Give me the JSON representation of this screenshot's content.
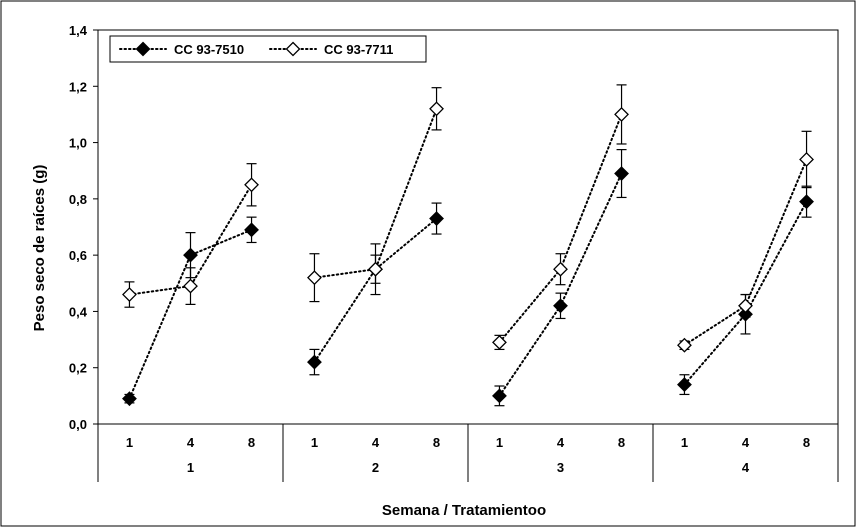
{
  "chart_data": {
    "type": "line",
    "title": "",
    "xlabel": "Semana / Tratamientoo",
    "ylabel": "Peso seco de raíces (g)",
    "ylim": [
      0,
      1.4
    ],
    "yticks": [
      "0,0",
      "0,2",
      "0,4",
      "0,6",
      "0,8",
      "1,0",
      "1,2",
      "1,4"
    ],
    "groups": [
      {
        "label": "1",
        "categories": [
          "1",
          "4",
          "8"
        ]
      },
      {
        "label": "2",
        "categories": [
          "1",
          "4",
          "8"
        ]
      },
      {
        "label": "3",
        "categories": [
          "1",
          "4",
          "8"
        ]
      },
      {
        "label": "4",
        "categories": [
          "1",
          "4",
          "8"
        ]
      }
    ],
    "grid": false,
    "legend_position": "top-left",
    "series": [
      {
        "name": "CC 93-7510",
        "marker": "filled-diamond",
        "color": "#000000",
        "values": [
          [
            0.09,
            0.6,
            0.69
          ],
          [
            0.22,
            0.55,
            0.73
          ],
          [
            0.1,
            0.42,
            0.89
          ],
          [
            0.14,
            0.39,
            0.79
          ]
        ],
        "errors": [
          [
            0.015,
            0.08,
            0.045
          ],
          [
            0.045,
            0.05,
            0.055
          ],
          [
            0.035,
            0.045,
            0.085
          ],
          [
            0.035,
            0.07,
            0.055
          ]
        ]
      },
      {
        "name": "CC 93-7711",
        "marker": "open-diamond",
        "color": "#000000",
        "values": [
          [
            0.46,
            0.49,
            0.85
          ],
          [
            0.52,
            0.55,
            1.12
          ],
          [
            0.29,
            0.55,
            1.1
          ],
          [
            0.28,
            0.42,
            0.94
          ]
        ],
        "errors": [
          [
            0.045,
            0.065,
            0.075
          ],
          [
            0.085,
            0.09,
            0.075
          ],
          [
            0.025,
            0.055,
            0.105
          ],
          [
            0.015,
            0.04,
            0.1
          ]
        ]
      }
    ]
  }
}
